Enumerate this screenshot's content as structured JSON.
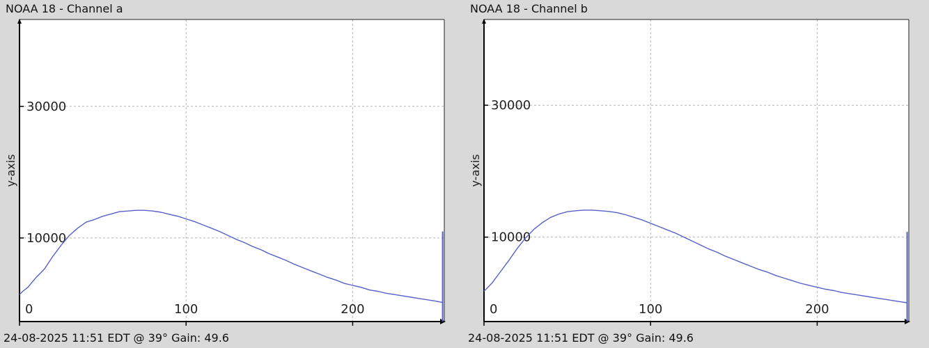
{
  "chart_data": [
    {
      "type": "line",
      "title": "NOAA 18 - Channel a",
      "xlabel": "",
      "ylabel": "y-axis",
      "xlim": [
        0,
        255
      ],
      "ylim": [
        -2700,
        43200
      ],
      "x_ticks": [
        0,
        100,
        200
      ],
      "y_ticks": [
        10000,
        30000
      ],
      "grid": true,
      "color": "#5560c8",
      "series": [
        {
          "x": [
            0,
            2,
            5,
            10,
            15,
            20,
            25,
            30,
            35,
            40,
            45,
            50,
            55,
            60,
            65,
            70,
            75,
            80,
            85,
            90,
            95,
            100,
            105,
            110,
            115,
            120,
            125,
            130,
            135,
            140,
            145,
            150,
            155,
            160,
            165,
            170,
            175,
            180,
            185,
            190,
            195,
            200,
            205,
            210,
            215,
            220,
            225,
            230,
            235,
            240,
            245,
            250,
            254
          ],
          "y": [
            1400,
            1900,
            2500,
            4000,
            5300,
            7200,
            8900,
            10400,
            11500,
            12400,
            12800,
            13300,
            13650,
            14000,
            14100,
            14200,
            14200,
            14100,
            13900,
            13600,
            13300,
            12900,
            12500,
            12000,
            11500,
            11000,
            10400,
            9800,
            9300,
            8700,
            8200,
            7600,
            7100,
            6600,
            6000,
            5500,
            5000,
            4500,
            4000,
            3600,
            3100,
            2800,
            2500,
            2100,
            1900,
            1600,
            1400,
            1200,
            1000,
            800,
            600,
            400,
            200
          ]
        }
      ],
      "end_spike": {
        "x": 254,
        "y": 11000
      },
      "footer": "24-08-2025 11:51 EDT @ 39° Gain: 49.6"
    },
    {
      "type": "line",
      "title": "NOAA 18 - Channel b",
      "xlabel": "",
      "ylabel": "y-axis",
      "xlim": [
        0,
        255
      ],
      "ylim": [
        -2800,
        43000
      ],
      "x_ticks": [
        0,
        100,
        200
      ],
      "y_ticks": [
        10000,
        30000
      ],
      "grid": true,
      "color": "#5560c8",
      "series": [
        {
          "x": [
            0,
            2,
            5,
            10,
            15,
            20,
            25,
            30,
            35,
            40,
            45,
            50,
            55,
            60,
            65,
            70,
            75,
            80,
            85,
            90,
            95,
            100,
            105,
            110,
            115,
            120,
            125,
            130,
            135,
            140,
            145,
            150,
            155,
            160,
            165,
            170,
            175,
            180,
            185,
            190,
            195,
            200,
            205,
            210,
            215,
            220,
            225,
            230,
            235,
            240,
            245,
            250,
            254
          ],
          "y": [
            1800,
            2300,
            3100,
            4800,
            6500,
            8300,
            9900,
            11200,
            12200,
            13000,
            13500,
            13850,
            14000,
            14100,
            14100,
            14000,
            13900,
            13700,
            13400,
            13000,
            12600,
            12100,
            11600,
            11100,
            10600,
            10000,
            9400,
            8800,
            8200,
            7700,
            7100,
            6600,
            6100,
            5600,
            5100,
            4700,
            4200,
            3800,
            3400,
            3000,
            2700,
            2400,
            2100,
            1900,
            1600,
            1400,
            1200,
            1000,
            800,
            600,
            400,
            200,
            50
          ]
        }
      ],
      "end_spike": {
        "x": 254,
        "y": 10800
      },
      "footer": "24-08-2025 11:51 EDT @ 39° Gain: 49.6"
    }
  ]
}
